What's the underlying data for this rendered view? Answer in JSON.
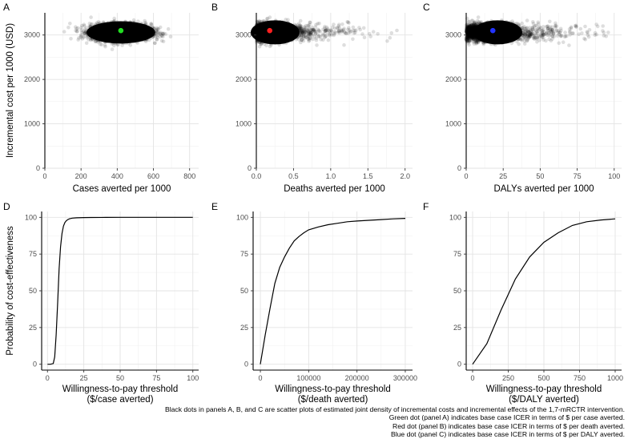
{
  "figure": {
    "caption_lines": [
      "Black dots in panels A, B, and C are scatter plots of estimated joint density of incremental costs and incremental effects of the 1,7-mRCTR intervention.",
      "Green dot (panel A) indicates base case ICER in terms of $ per case averted.",
      "Red dot (panel B) indicates base case ICER in terms of $ per death averted.",
      "Blue dot (panel C) indicates base case ICER in terms of $ per DALY averted."
    ]
  },
  "chart_data": [
    {
      "panel": "A",
      "type": "scatter",
      "xlabel": "Cases averted per 1000",
      "ylabel": "Incremental cost per 1000 (USD)",
      "xlim": [
        0,
        850
      ],
      "ylim": [
        0,
        3500
      ],
      "xticks": [
        0,
        200,
        400,
        600,
        800
      ],
      "yticks": [
        0,
        1000,
        2000,
        3000
      ],
      "cloud": {
        "x_center": 420,
        "x_spread": 185,
        "y_center": 3060,
        "y_spread": 380,
        "x_min": 20,
        "x_max": 840,
        "y_min": 2550,
        "y_max": 3400
      },
      "base_case": {
        "x": 420,
        "y": 3100,
        "color": "#22dd22",
        "label": "Green dot"
      }
    },
    {
      "panel": "B",
      "type": "scatter",
      "xlabel": "Deaths averted per 1000",
      "ylabel": "",
      "xlim": [
        0,
        2.1
      ],
      "ylim": [
        0,
        3500
      ],
      "xticks": [
        0.0,
        0.5,
        1.0,
        1.5,
        2.0
      ],
      "yticks": [
        0,
        1000,
        2000,
        3000
      ],
      "cloud": {
        "x_center": 0.15,
        "x_spread": 1.0,
        "y_center": 3060,
        "y_spread": 380,
        "x_min": 0.0,
        "x_max": 2.05,
        "y_min": 2550,
        "y_max": 3450
      },
      "base_case": {
        "x": 0.18,
        "y": 3100,
        "color": "#ff2020",
        "label": "Red dot"
      }
    },
    {
      "panel": "C",
      "type": "scatter",
      "xlabel": "DALYs averted per 1000",
      "ylabel": "",
      "xlim": [
        0,
        105
      ],
      "ylim": [
        0,
        3500
      ],
      "xticks": [
        0,
        25,
        50,
        75,
        100
      ],
      "yticks": [
        0,
        1000,
        2000,
        3000
      ],
      "cloud": {
        "x_center": 16,
        "x_spread": 48,
        "y_center": 3060,
        "y_spread": 380,
        "x_min": 0,
        "x_max": 104,
        "y_min": 2550,
        "y_max": 3450
      },
      "base_case": {
        "x": 18,
        "y": 3100,
        "color": "#2233ff",
        "label": "Blue dot"
      }
    },
    {
      "panel": "D",
      "type": "line",
      "xlabel": "Willingness-to-pay threshold",
      "xlabel2": "($/case averted)",
      "ylabel": "Probability of cost-effectiveness",
      "xlim": [
        -4,
        104
      ],
      "ylim": [
        -4,
        104
      ],
      "xticks": [
        0,
        25,
        50,
        75,
        100
      ],
      "yticks": [
        0,
        25,
        50,
        75,
        100
      ],
      "x": [
        0,
        2,
        4,
        5,
        6,
        7,
        8,
        9,
        10,
        11,
        12,
        13,
        14,
        15,
        17,
        20,
        25,
        30,
        40,
        50,
        60,
        80,
        100
      ],
      "y": [
        0,
        0,
        0.5,
        5,
        20,
        42,
        65,
        80,
        89,
        94,
        96.5,
        97.8,
        98.5,
        99,
        99.5,
        99.7,
        99.85,
        99.9,
        99.95,
        100,
        100,
        100,
        100
      ]
    },
    {
      "panel": "E",
      "type": "line",
      "xlabel": "Willingness-to-pay threshold",
      "xlabel2": "($/death averted)",
      "ylabel": "",
      "xlim": [
        -15000,
        315000
      ],
      "ylim": [
        -4,
        104
      ],
      "xticks": [
        0,
        100000,
        200000,
        300000
      ],
      "yticks": [
        0,
        25,
        50,
        75,
        100
      ],
      "x": [
        0,
        10000,
        20000,
        30000,
        40000,
        50000,
        60000,
        70000,
        80000,
        90000,
        100000,
        120000,
        140000,
        160000,
        180000,
        200000,
        225000,
        250000,
        275000,
        300000
      ],
      "y": [
        0,
        20,
        38,
        55,
        66,
        73,
        79,
        84,
        87,
        89.5,
        91.5,
        93.5,
        95,
        96,
        97,
        97.5,
        98,
        98.5,
        99,
        99.3
      ]
    },
    {
      "panel": "F",
      "type": "line",
      "xlabel": "Willingness-to-pay threshold",
      "xlabel2": "($/DALY averted)",
      "ylabel": "",
      "xlim": [
        -45,
        1045
      ],
      "ylim": [
        -4,
        104
      ],
      "xticks": [
        0,
        250,
        500,
        750,
        1000
      ],
      "yticks": [
        0,
        25,
        50,
        75,
        100
      ],
      "x": [
        0,
        100,
        200,
        300,
        400,
        500,
        600,
        700,
        800,
        900,
        1000
      ],
      "y": [
        0,
        14,
        37,
        58,
        73,
        83,
        89.5,
        94.5,
        97,
        98.2,
        99
      ]
    }
  ]
}
